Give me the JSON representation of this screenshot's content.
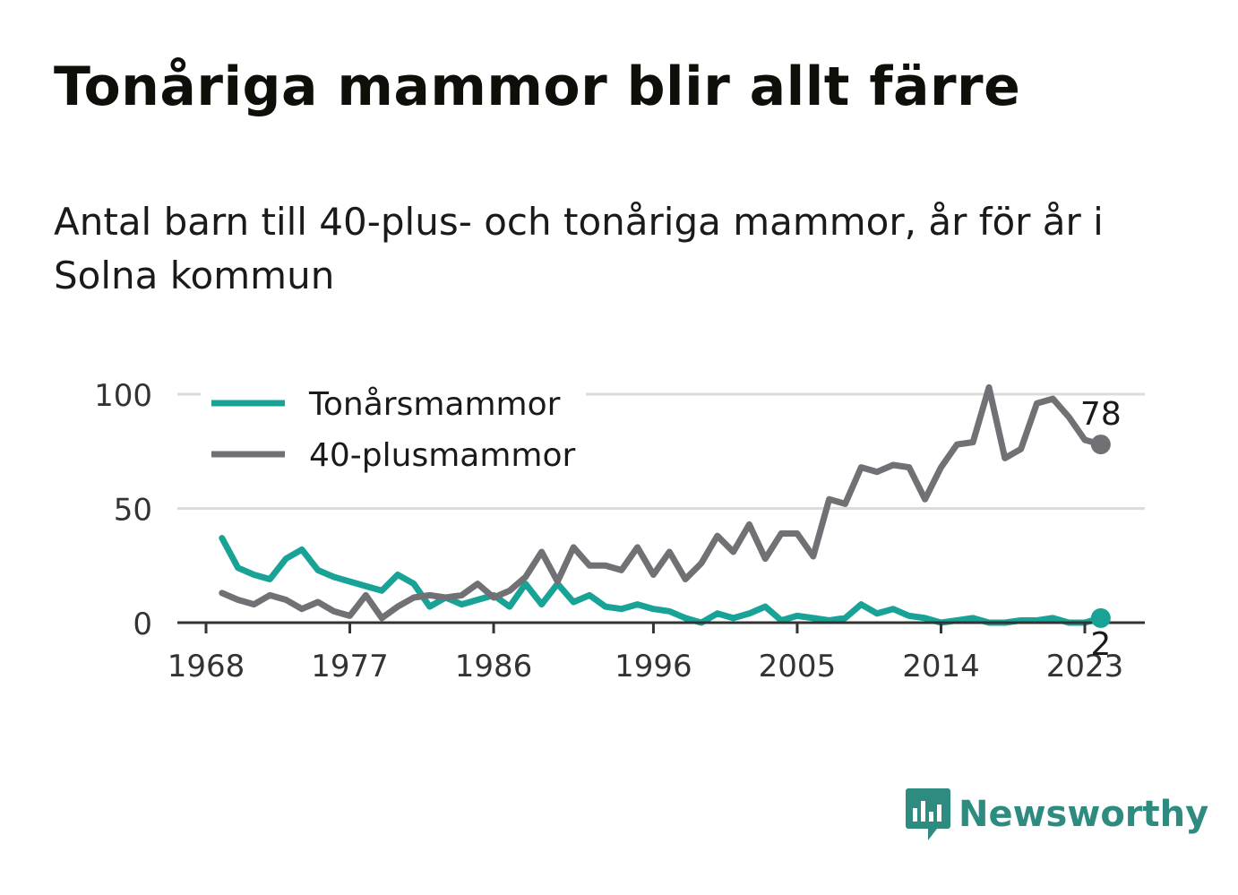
{
  "title": "Tonåriga mammor blir allt färre",
  "subtitle": "Antal barn till 40-plus- och tonåriga mammor, år för år i Solna kommun",
  "brand": {
    "name": "Newsworthy",
    "color": "#2e8b80",
    "icon": "newsworthy-logo-icon"
  },
  "colors": {
    "teen": "#18a396",
    "forty": "#707075",
    "grid": "#dcdcdc",
    "axis": "#333333"
  },
  "chart_data": {
    "type": "line",
    "x_label": "",
    "y_label": "",
    "y_ticks": [
      0,
      50,
      100
    ],
    "x_ticks": [
      1968,
      1977,
      1986,
      1996,
      2005,
      2014,
      2023
    ],
    "xlim": [
      1968,
      2024
    ],
    "ylim": [
      0,
      100
    ],
    "grid": "horizontal",
    "legend": "top-left",
    "x": [
      1969,
      1970,
      1971,
      1972,
      1973,
      1974,
      1975,
      1976,
      1977,
      1978,
      1979,
      1980,
      1981,
      1982,
      1983,
      1984,
      1985,
      1986,
      1987,
      1988,
      1989,
      1990,
      1991,
      1992,
      1993,
      1994,
      1995,
      1996,
      1997,
      1998,
      1999,
      2000,
      2001,
      2002,
      2003,
      2004,
      2005,
      2006,
      2007,
      2008,
      2009,
      2010,
      2011,
      2012,
      2013,
      2014,
      2015,
      2016,
      2017,
      2018,
      2019,
      2020,
      2021,
      2022,
      2023,
      2024
    ],
    "series": [
      {
        "name": "Tonårsmammor",
        "color": "#18a396",
        "values": [
          37,
          24,
          21,
          19,
          28,
          32,
          23,
          20,
          18,
          16,
          14,
          21,
          17,
          7,
          11,
          8,
          10,
          12,
          7,
          17,
          8,
          17,
          9,
          12,
          7,
          6,
          8,
          6,
          5,
          2,
          0,
          4,
          2,
          4,
          7,
          1,
          3,
          2,
          1,
          2,
          8,
          4,
          6,
          3,
          2,
          0,
          1,
          2,
          0,
          0,
          1,
          1,
          2,
          0,
          0,
          2
        ],
        "end_label": "2"
      },
      {
        "name": "40-plusmammor",
        "color": "#707075",
        "values": [
          13,
          10,
          8,
          12,
          10,
          6,
          9,
          5,
          3,
          12,
          2,
          7,
          11,
          12,
          11,
          12,
          17,
          11,
          14,
          20,
          31,
          18,
          33,
          25,
          25,
          23,
          33,
          21,
          31,
          19,
          26,
          38,
          31,
          43,
          28,
          39,
          39,
          29,
          54,
          52,
          68,
          66,
          69,
          68,
          54,
          68,
          78,
          79,
          103,
          72,
          76,
          96,
          98,
          90,
          80,
          78
        ],
        "end_label": "78"
      }
    ]
  }
}
